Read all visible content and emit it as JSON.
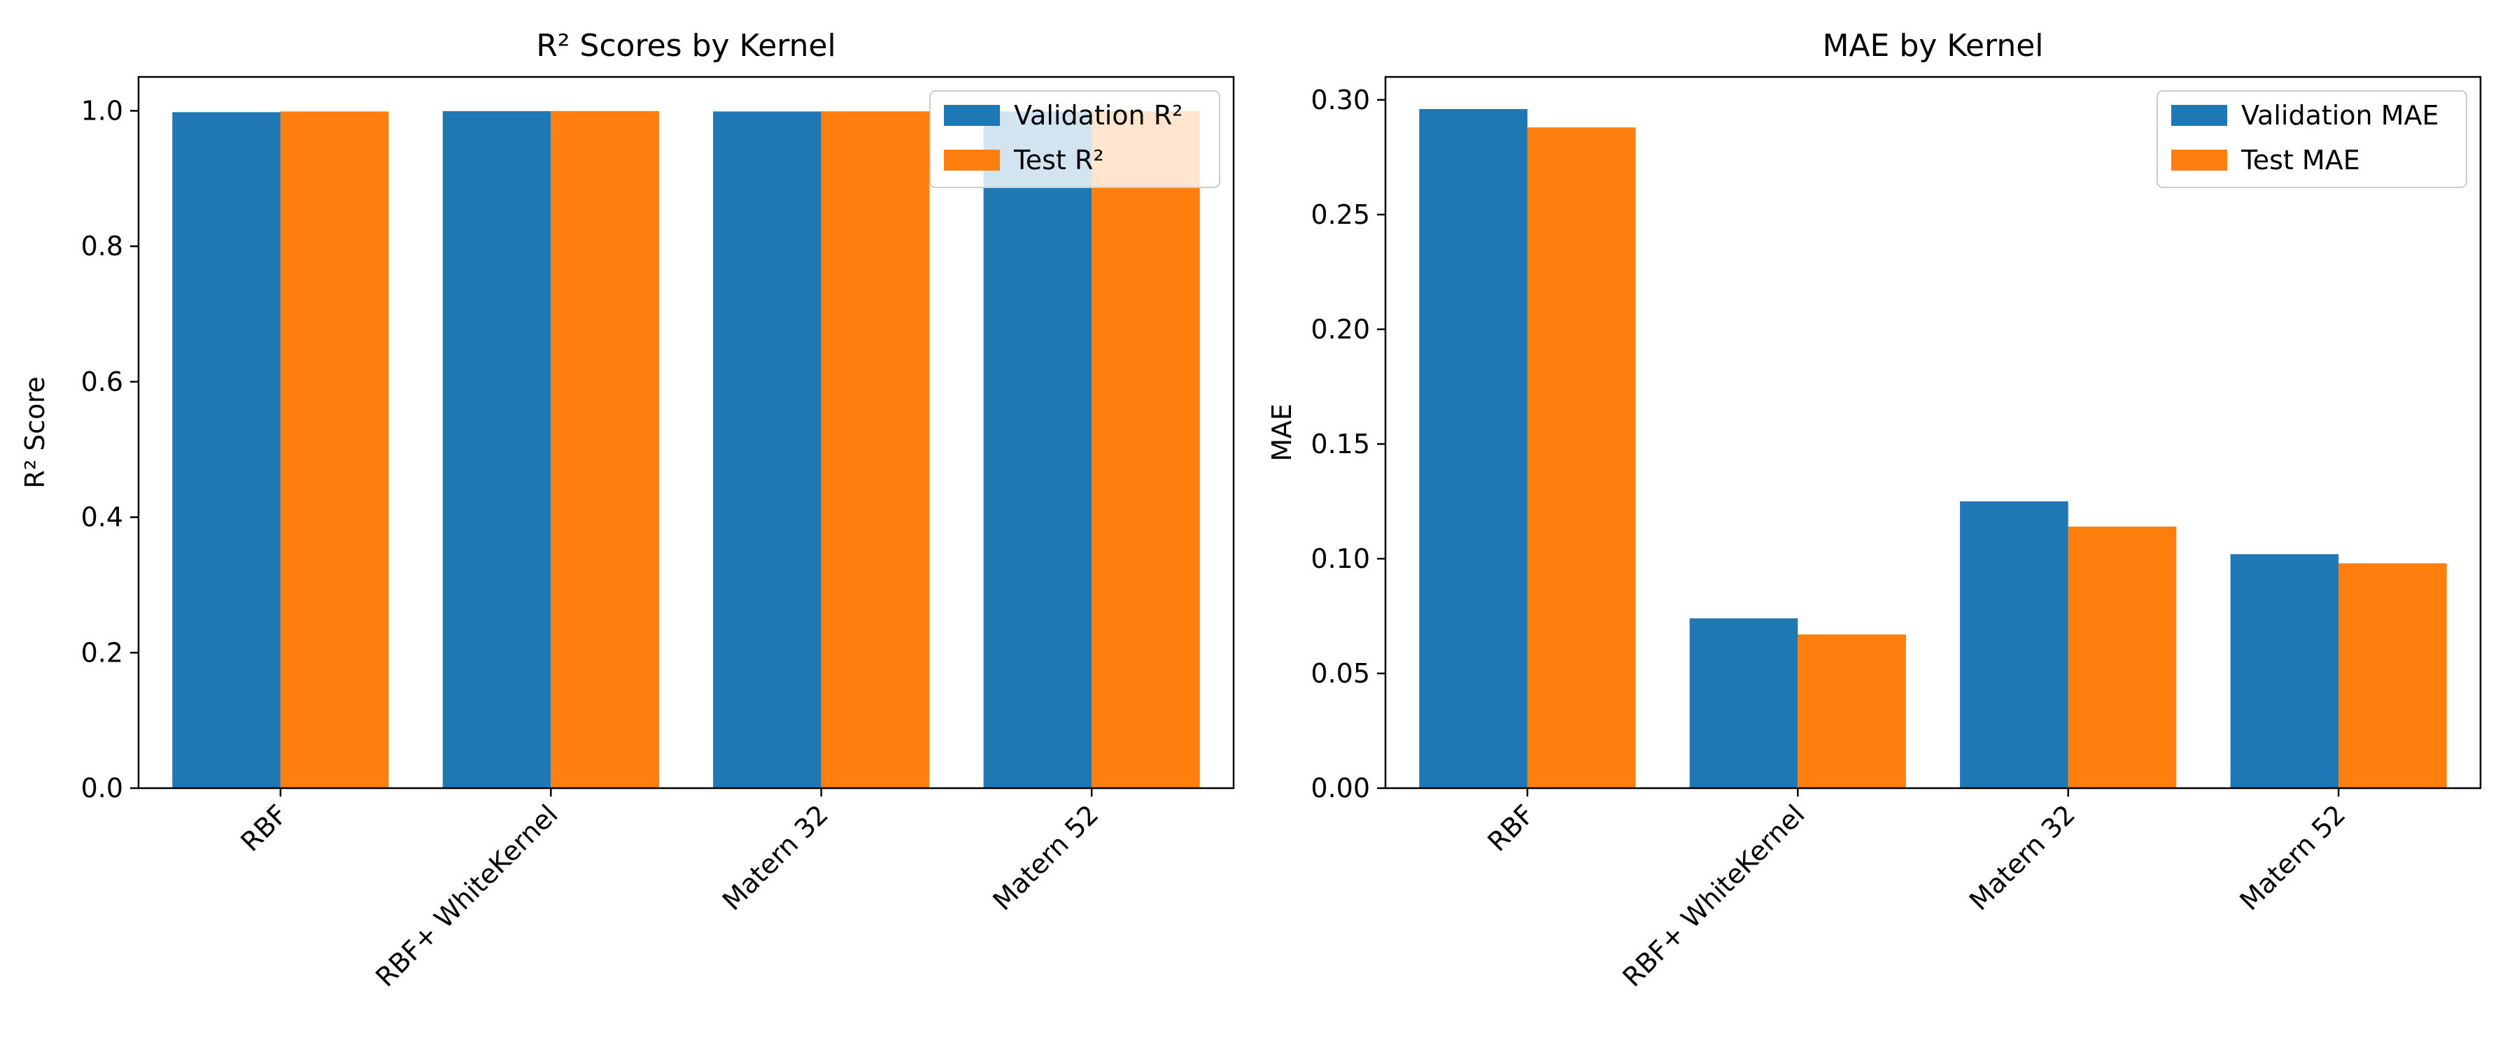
{
  "chart_data": [
    {
      "type": "bar",
      "title": "R² Scores by Kernel",
      "xlabel": "",
      "ylabel": "R² Score",
      "categories": [
        "RBF",
        "RBF+ WhiteKernel",
        "Matern 32",
        "Matern 52"
      ],
      "series": [
        {
          "name": "Validation R²",
          "color": "#1f77b4",
          "values": [
            0.998,
            0.9995,
            0.999,
            0.999
          ]
        },
        {
          "name": "Test R²",
          "color": "#ff7f0e",
          "values": [
            0.999,
            0.9996,
            0.9992,
            0.9993
          ]
        }
      ],
      "ylim": [
        0,
        1.05
      ],
      "yticks": [
        "0.0",
        "0.2",
        "0.4",
        "0.6",
        "0.8",
        "1.0"
      ],
      "grid": false,
      "legend": "top-right"
    },
    {
      "type": "bar",
      "title": "MAE by Kernel",
      "xlabel": "",
      "ylabel": "MAE",
      "categories": [
        "RBF",
        "RBF+ WhiteKernel",
        "Matern 32",
        "Matern 52"
      ],
      "series": [
        {
          "name": "Validation MAE",
          "color": "#1f77b4",
          "values": [
            0.296,
            0.074,
            0.125,
            0.102
          ]
        },
        {
          "name": "Test MAE",
          "color": "#ff7f0e",
          "values": [
            0.288,
            0.067,
            0.114,
            0.098
          ]
        }
      ],
      "ylim": [
        0,
        0.31
      ],
      "yticks": [
        "0.00",
        "0.05",
        "0.10",
        "0.15",
        "0.20",
        "0.25",
        "0.30"
      ],
      "grid": false,
      "legend": "top-right"
    }
  ]
}
